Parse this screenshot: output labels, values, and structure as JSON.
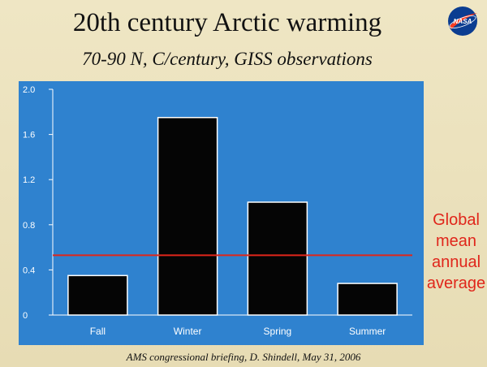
{
  "slide": {
    "title": "20th century Arctic warming",
    "subtitle": "70-90 N, C/century, GISS observations",
    "logo_text": "NASA",
    "annotation_lines": [
      "Global",
      "mean",
      "annual",
      "average"
    ],
    "footer": "AMS congressional briefing, D. Shindell, May 31, 2006"
  },
  "colors": {
    "plot_background": "#2f82cf",
    "bar_fill": "#050505",
    "bar_stroke": "#ffffff",
    "reference_line": "#e0261b",
    "logo_blue": "#0b3d91",
    "logo_red": "#fc3d21"
  },
  "chart_data": {
    "type": "bar",
    "categories": [
      "Fall",
      "Winter",
      "Spring",
      "Summer"
    ],
    "values": [
      0.35,
      1.75,
      1.0,
      0.28
    ],
    "ylim": [
      0,
      2.0
    ],
    "yticks": [
      "0",
      "0.4",
      "0.8",
      "1.2",
      "1.6",
      "2.0"
    ],
    "reference_line": {
      "label": "Global mean annual average",
      "value": 0.53
    },
    "grid": false,
    "legend": "none"
  }
}
